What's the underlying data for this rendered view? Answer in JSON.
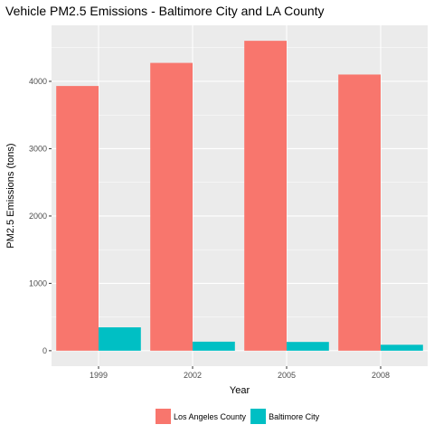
{
  "chart_data": {
    "type": "bar",
    "title": "Vehicle PM2.5 Emissions - Baltimore City and LA County",
    "xlabel": "Year",
    "ylabel": "PM2.5 Emissions (tons)",
    "categories": [
      "1999",
      "2002",
      "2005",
      "2008"
    ],
    "series": [
      {
        "name": "Los Angeles County",
        "color": "#F8766D",
        "values": [
          3931,
          4274,
          4602,
          4101
        ]
      },
      {
        "name": "Baltimore City",
        "color": "#00BFC4",
        "values": [
          347,
          134,
          130,
          88
        ]
      }
    ],
    "yticks": [
      0,
      1000,
      2000,
      3000,
      4000
    ],
    "ylim": [
      -230,
      4832
    ],
    "grid": true,
    "panel_background": "#EBEBEB",
    "legend_position": "bottom"
  }
}
